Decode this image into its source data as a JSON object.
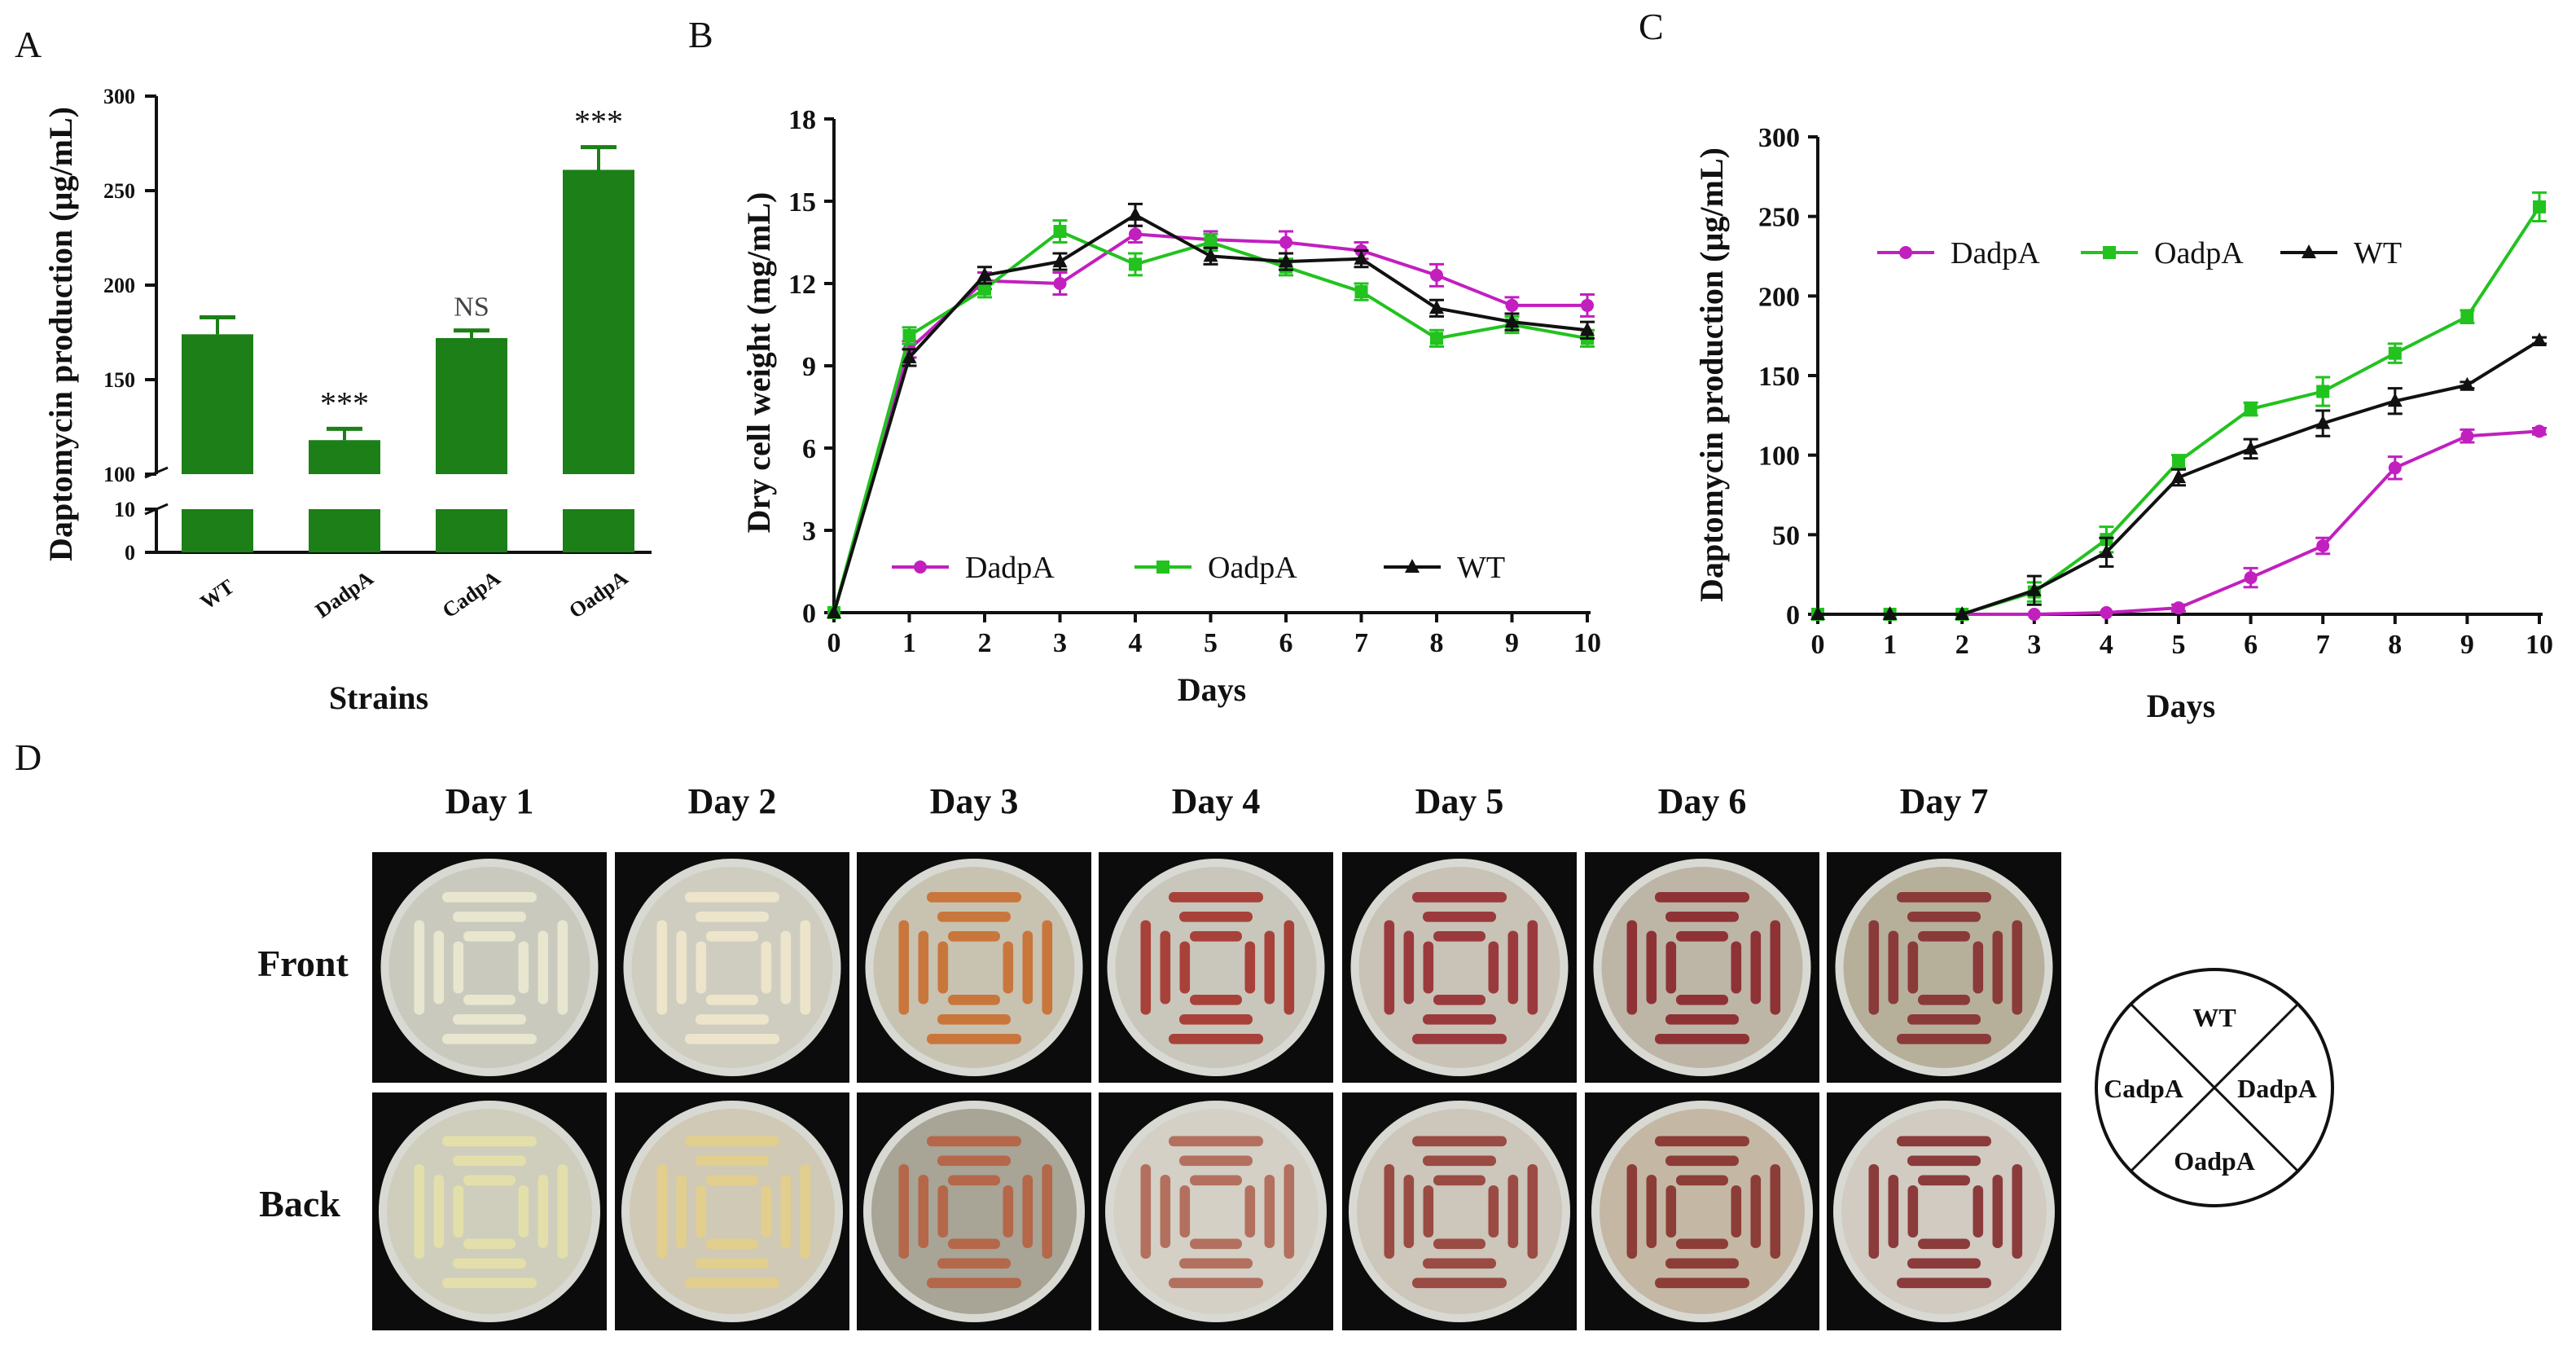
{
  "chart_data": [
    {
      "panel": "A",
      "type": "bar",
      "xlabel": "Strains",
      "ylabel": "Daptomycin production (µg/mL)",
      "categories": [
        "WT",
        "DadpA",
        "CadpA",
        "OadpA"
      ],
      "values": [
        174,
        118,
        172,
        261
      ],
      "errors": [
        9,
        6,
        4,
        12
      ],
      "significance": [
        "",
        "***",
        "NS",
        "***"
      ],
      "ylim": [
        0,
        300
      ],
      "axis_break": [
        10,
        100
      ],
      "yticks_upper": [
        "100",
        "150",
        "200",
        "250",
        "300"
      ],
      "yticks_lower": [
        "0",
        "10"
      ],
      "color": "#1c7f17"
    },
    {
      "panel": "B",
      "type": "line",
      "xlabel": "Days",
      "ylabel": "Dry cell weight (mg/mL)",
      "x": [
        0,
        1,
        2,
        3,
        4,
        5,
        6,
        7,
        8,
        9,
        10
      ],
      "xticks": [
        "0",
        "1",
        "2",
        "3",
        "4",
        "5",
        "6",
        "7",
        "8",
        "9",
        "10"
      ],
      "yticks": [
        "0",
        "3",
        "6",
        "9",
        "12",
        "15",
        "18"
      ],
      "ylim": [
        0,
        18
      ],
      "series": [
        {
          "name": "DadpA",
          "color": "#c21fbf",
          "marker": "circle",
          "values": [
            0,
            9.6,
            12.1,
            12.0,
            13.8,
            13.6,
            13.5,
            13.2,
            12.3,
            11.2,
            11.2
          ],
          "errors": [
            0,
            0.3,
            0.3,
            0.4,
            0.3,
            0.3,
            0.4,
            0.3,
            0.4,
            0.3,
            0.4
          ]
        },
        {
          "name": "OadpA",
          "color": "#22c21f",
          "marker": "square",
          "values": [
            0,
            10.1,
            11.8,
            13.9,
            12.7,
            13.5,
            12.6,
            11.7,
            10.0,
            10.5,
            10.0
          ],
          "errors": [
            0,
            0.3,
            0.3,
            0.4,
            0.4,
            0.3,
            0.3,
            0.3,
            0.3,
            0.3,
            0.3
          ]
        },
        {
          "name": "WT",
          "color": "#111111",
          "marker": "triangle",
          "values": [
            0,
            9.3,
            12.3,
            12.8,
            14.5,
            13.0,
            12.8,
            12.9,
            11.1,
            10.6,
            10.3
          ],
          "errors": [
            0,
            0.3,
            0.3,
            0.3,
            0.4,
            0.3,
            0.3,
            0.3,
            0.3,
            0.3,
            0.3
          ]
        }
      ]
    },
    {
      "panel": "C",
      "type": "line",
      "xlabel": "Days",
      "ylabel": "Daptomycin production (µg/mL)",
      "x": [
        0,
        1,
        2,
        3,
        4,
        5,
        6,
        7,
        8,
        9,
        10
      ],
      "xticks": [
        "0",
        "1",
        "2",
        "3",
        "4",
        "5",
        "6",
        "7",
        "8",
        "9",
        "10"
      ],
      "yticks": [
        "0",
        "50",
        "100",
        "150",
        "200",
        "250",
        "300"
      ],
      "ylim": [
        0,
        300
      ],
      "series": [
        {
          "name": "DadpA",
          "color": "#c21fbf",
          "marker": "circle",
          "values": [
            0,
            0,
            0,
            0,
            1,
            4,
            23,
            43,
            92,
            112,
            115
          ],
          "errors": [
            0,
            0,
            0,
            0,
            0,
            2,
            6,
            5,
            7,
            4,
            2
          ]
        },
        {
          "name": "OadpA",
          "color": "#22c21f",
          "marker": "square",
          "values": [
            0,
            0,
            0,
            14,
            47,
            96,
            129,
            140,
            164,
            187,
            256
          ],
          "errors": [
            0,
            0,
            0,
            6,
            8,
            4,
            4,
            9,
            6,
            4,
            9
          ]
        },
        {
          "name": "WT",
          "color": "#111111",
          "marker": "triangle",
          "values": [
            0,
            0,
            0,
            15,
            39,
            86,
            104,
            120,
            134,
            144,
            172
          ],
          "errors": [
            0,
            0,
            0,
            9,
            9,
            5,
            6,
            8,
            8,
            2,
            2
          ]
        }
      ]
    }
  ],
  "panel_labels": {
    "a": "A",
    "b": "B",
    "c": "C",
    "d": "D"
  },
  "panel_d": {
    "days": [
      "Day 1",
      "Day 2",
      "Day 3",
      "Day 4",
      "Day 5",
      "Day 6",
      "Day 7"
    ],
    "rows": [
      "Front",
      "Back"
    ],
    "front_pigment": [
      "#e8e6cf",
      "#ece5cc",
      "#c9763d",
      "#a8413a",
      "#9b3a3c",
      "#8e3236",
      "#8a3a38"
    ],
    "back_pigment": [
      "#e3dfaa",
      "#e2cf8e",
      "#b5674a",
      "#b3705e",
      "#9a4b43",
      "#8d3d37",
      "#8b3b3b"
    ],
    "agar_front": [
      "#c9c9bd",
      "#cfcdbf",
      "#c8c3b0",
      "#c9c7bb",
      "#c8c3b6",
      "#bdb6a6",
      "#b6b09b"
    ],
    "agar_back": [
      "#cfcdbc",
      "#cfc9b5",
      "#a8a496",
      "#d4d0c6",
      "#cdc6ba",
      "#c4b8a5",
      "#d1cbc1"
    ],
    "key": {
      "top": "WT",
      "right": "DadpA",
      "bottom": "OadpA",
      "left": "CadpA"
    }
  }
}
